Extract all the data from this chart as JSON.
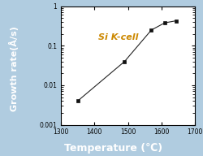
{
  "x": [
    1350,
    1490,
    1570,
    1610,
    1645
  ],
  "y": [
    0.004,
    0.04,
    0.25,
    0.38,
    0.43
  ],
  "xlabel": "Temperature (℃)",
  "ylabel": "Growth rate(Å/s)",
  "label": "Si K-cell",
  "xlim": [
    1300,
    1700
  ],
  "ylim_log": [
    0.001,
    1
  ],
  "xticks": [
    1300,
    1400,
    1500,
    1600,
    1700
  ],
  "yticks": [
    0.001,
    0.01,
    0.1,
    1
  ],
  "ytick_labels": [
    "0.001",
    "0.01",
    "0.1",
    "1"
  ],
  "line_color": "#222222",
  "marker_color": "#111111",
  "label_color": "#cc8800",
  "bg_outer": "#b0cce0",
  "bg_plot": "#ffffff",
  "bar_color": "#1a4fa0",
  "tick_fontsize": 5.5,
  "label_fontsize": 7.5,
  "annotation_fontsize": 8
}
